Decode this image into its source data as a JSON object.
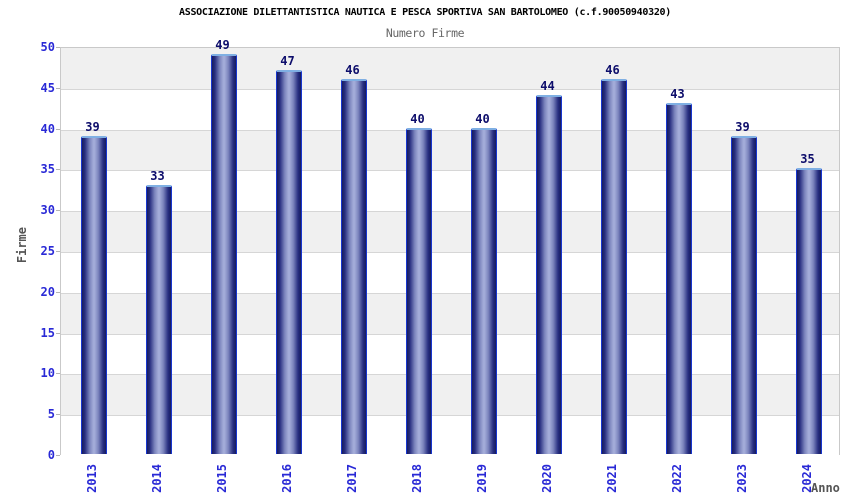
{
  "header": {
    "title": "ASSOCIAZIONE DILETTANTISTICA NAUTICA E PESCA SPORTIVA SAN BARTOLOMEO (c.f.90050940320)",
    "subtitle": "Numero Firme"
  },
  "chart_data": {
    "type": "bar",
    "title": "Numero Firme",
    "categories": [
      "2013",
      "2014",
      "2015",
      "2016",
      "2017",
      "2018",
      "2019",
      "2020",
      "2021",
      "2022",
      "2023",
      "2024"
    ],
    "values": [
      39,
      33,
      49,
      47,
      46,
      40,
      40,
      44,
      46,
      43,
      39,
      35
    ],
    "xlabel": "Anno",
    "ylabel": "Firme",
    "ylim": [
      0,
      50
    ],
    "ytick_step": 5,
    "grid": true,
    "legend_position": "none",
    "band_colors": [
      "#f0f0f0",
      "#ffffff"
    ]
  },
  "colors": {
    "title": "#000000",
    "subtitle": "#666666",
    "tick_label": "#2929d6",
    "value_label": "#0d0d6b",
    "axis_title": "#555555",
    "plot_border": "#c9c9c9",
    "gridline": "#d6d6d6",
    "bar_edge": "#1736d0",
    "bar_top_edge": "#7fafe3",
    "bar_dark": "#171c5e",
    "bar_light": "#a2abd8"
  }
}
